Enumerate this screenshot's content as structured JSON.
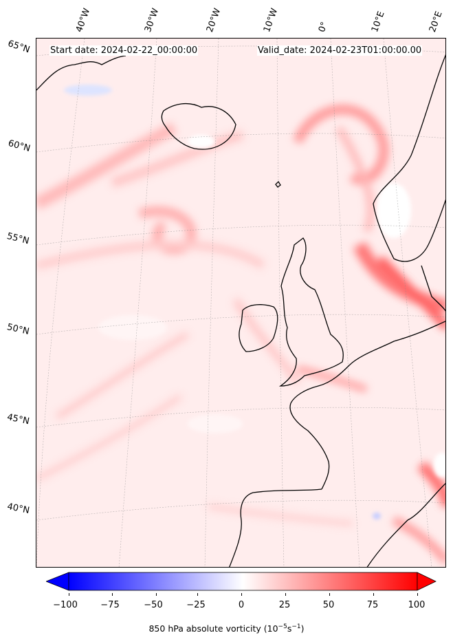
{
  "header": {
    "start_date": "Start date: 2024-02-22_00:00:00",
    "valid_date": "Valid_date: 2024-02-23T01:00:00.00"
  },
  "lon_labels": [
    "40°W",
    "30°W",
    "20°W",
    "10°W",
    "0°",
    "10°E",
    "20°E"
  ],
  "lat_labels": [
    "65°N",
    "60°N",
    "55°N",
    "50°N",
    "45°N",
    "40°N"
  ],
  "colorbar": {
    "ticks": [
      "−100",
      "−75",
      "−50",
      "−25",
      "0",
      "25",
      "50",
      "75",
      "100"
    ],
    "label_main": "850 hPa absolute vorticity (10",
    "label_exp1": "−5",
    "label_mid": "s",
    "label_exp2": "−1",
    "label_end": ")",
    "min_color": "#0000ff",
    "mid_color": "#ffffff",
    "max_color": "#ff0000"
  }
}
